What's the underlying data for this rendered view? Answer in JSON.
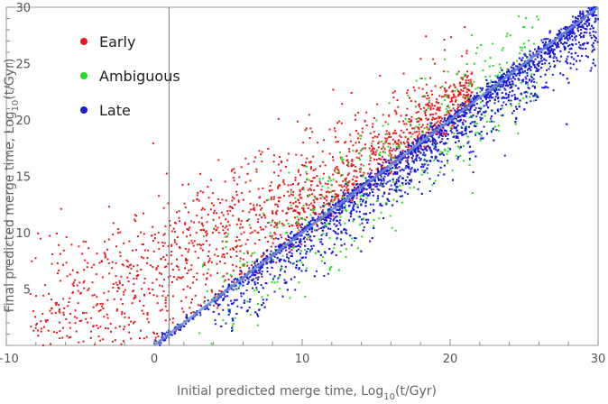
{
  "chart_data": {
    "type": "scatter",
    "title": "",
    "xlabel": {
      "prefix": "Initial predicted merge time, Log",
      "sub": "10",
      "suffix": "(t/Gyr)"
    },
    "ylabel": {
      "prefix": "Final predicted merge time, Log",
      "sub": "10",
      "suffix": "(t/Gyr)"
    },
    "xlim": [
      -10,
      30
    ],
    "ylim": [
      0,
      30
    ],
    "xticks": [
      -10,
      0,
      10,
      20,
      30
    ],
    "xtick_labels": [
      "−10",
      "0",
      "10",
      "20",
      "30"
    ],
    "yticks": [
      5,
      10,
      15,
      20,
      25,
      30
    ],
    "ytick_labels": [
      "5",
      "10",
      "15",
      "20",
      "25",
      "30"
    ],
    "legend_position": "top-left",
    "reference_lines": {
      "vertical_x": 1,
      "diagonal": "y = x"
    },
    "series": [
      {
        "name": "Early",
        "color": "#e8191c",
        "note_points": [
          [
            -8,
            3
          ],
          [
            -7,
            9
          ],
          [
            -5,
            17
          ],
          [
            -4,
            8
          ],
          [
            -2,
            13
          ],
          [
            -1,
            6
          ],
          [
            0,
            10
          ],
          [
            1,
            4
          ],
          [
            1,
            15
          ],
          [
            2,
            12
          ],
          [
            3,
            18
          ],
          [
            4,
            9
          ],
          [
            5,
            14
          ],
          [
            6,
            19
          ],
          [
            7,
            16
          ],
          [
            8,
            21
          ],
          [
            9,
            17
          ],
          [
            10,
            22
          ],
          [
            11,
            15
          ],
          [
            12,
            20
          ],
          [
            13,
            24
          ],
          [
            14,
            19
          ],
          [
            15,
            22
          ],
          [
            16,
            26
          ],
          [
            17,
            21
          ],
          [
            19,
            23
          ]
        ]
      },
      {
        "name": "Ambiguous",
        "color": "#22dd22",
        "note_points": [
          [
            4,
            3
          ],
          [
            6,
            6
          ],
          [
            8,
            5
          ],
          [
            9,
            12
          ],
          [
            10,
            13
          ],
          [
            11,
            8
          ],
          [
            12,
            16
          ],
          [
            13,
            11
          ],
          [
            14,
            17
          ],
          [
            15,
            13
          ],
          [
            16,
            10
          ],
          [
            17,
            18
          ],
          [
            18,
            15
          ],
          [
            19,
            20
          ],
          [
            20,
            17
          ],
          [
            22,
            12
          ],
          [
            23,
            24
          ],
          [
            25,
            21
          ]
        ]
      },
      {
        "name": "Late",
        "color": "#1a1adc",
        "note_points": [
          [
            2,
            1
          ],
          [
            5,
            3
          ],
          [
            7,
            4
          ],
          [
            8,
            6
          ],
          [
            9,
            8
          ],
          [
            10,
            9
          ],
          [
            11,
            11
          ],
          [
            12,
            10
          ],
          [
            13,
            12
          ],
          [
            14,
            13
          ],
          [
            15,
            14
          ],
          [
            16,
            15
          ],
          [
            17,
            16
          ],
          [
            18,
            17
          ],
          [
            19,
            18
          ],
          [
            20,
            19
          ],
          [
            22,
            21
          ],
          [
            24,
            23
          ],
          [
            26,
            25
          ],
          [
            28,
            27
          ]
        ]
      }
    ]
  }
}
